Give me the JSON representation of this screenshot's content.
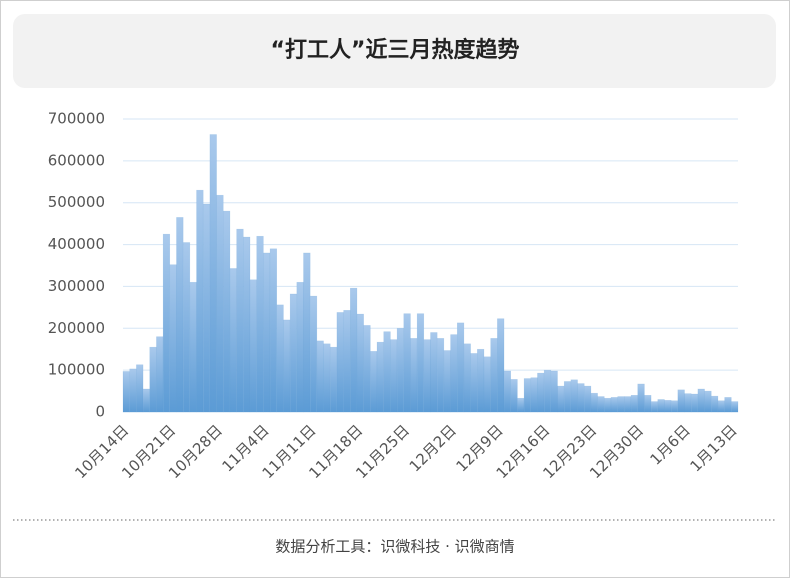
{
  "chart_data": {
    "type": "bar",
    "title": "“打工人”近三月热度趋势",
    "categories": [
      "10月14日",
      null,
      null,
      null,
      null,
      null,
      null,
      "10月21日",
      null,
      null,
      null,
      null,
      null,
      null,
      "10月28日",
      null,
      null,
      null,
      null,
      null,
      null,
      "11月4日",
      null,
      null,
      null,
      null,
      null,
      null,
      "11月11日",
      null,
      null,
      null,
      null,
      null,
      null,
      "11月18日",
      null,
      null,
      null,
      null,
      null,
      null,
      "11月25日",
      null,
      null,
      null,
      null,
      null,
      null,
      "12月2日",
      null,
      null,
      null,
      null,
      null,
      null,
      "12月9日",
      null,
      null,
      null,
      null,
      null,
      null,
      "12月16日",
      null,
      null,
      null,
      null,
      null,
      null,
      "12月23日",
      null,
      null,
      null,
      null,
      null,
      null,
      "12月30日",
      null,
      null,
      null,
      null,
      null,
      null,
      "1月6日",
      null,
      null,
      null,
      null,
      null,
      null,
      "1月13日"
    ],
    "values": [
      97000,
      103000,
      113000,
      55000,
      155000,
      180000,
      425000,
      352000,
      465000,
      405000,
      310000,
      530000,
      497000,
      663000,
      518000,
      480000,
      343000,
      437000,
      418000,
      316000,
      420000,
      380000,
      390000,
      256000,
      220000,
      282000,
      310000,
      380000,
      277000,
      170000,
      163000,
      155000,
      238000,
      243000,
      296000,
      234000,
      207000,
      145000,
      167000,
      192000,
      173000,
      200000,
      235000,
      176000,
      235000,
      173000,
      190000,
      176000,
      147000,
      185000,
      213000,
      163000,
      140000,
      150000,
      132000,
      176000,
      223000,
      98000,
      78000,
      33000,
      80000,
      82000,
      93000,
      100000,
      98000,
      62000,
      73000,
      77000,
      68000,
      62000,
      45000,
      37000,
      33000,
      35000,
      37000,
      37000,
      40000,
      67000,
      40000,
      25000,
      30000,
      28000,
      27000,
      53000,
      44000,
      43000,
      55000,
      50000,
      38000,
      27000,
      35000,
      25000
    ],
    "color": "#5b9bd5",
    "ylim": [
      0,
      700000
    ],
    "yticks": [
      0,
      100000,
      200000,
      300000,
      400000,
      500000,
      600000,
      700000
    ],
    "grid": true
  },
  "footer": "数据分析工具：识微科技 · 识微商情"
}
